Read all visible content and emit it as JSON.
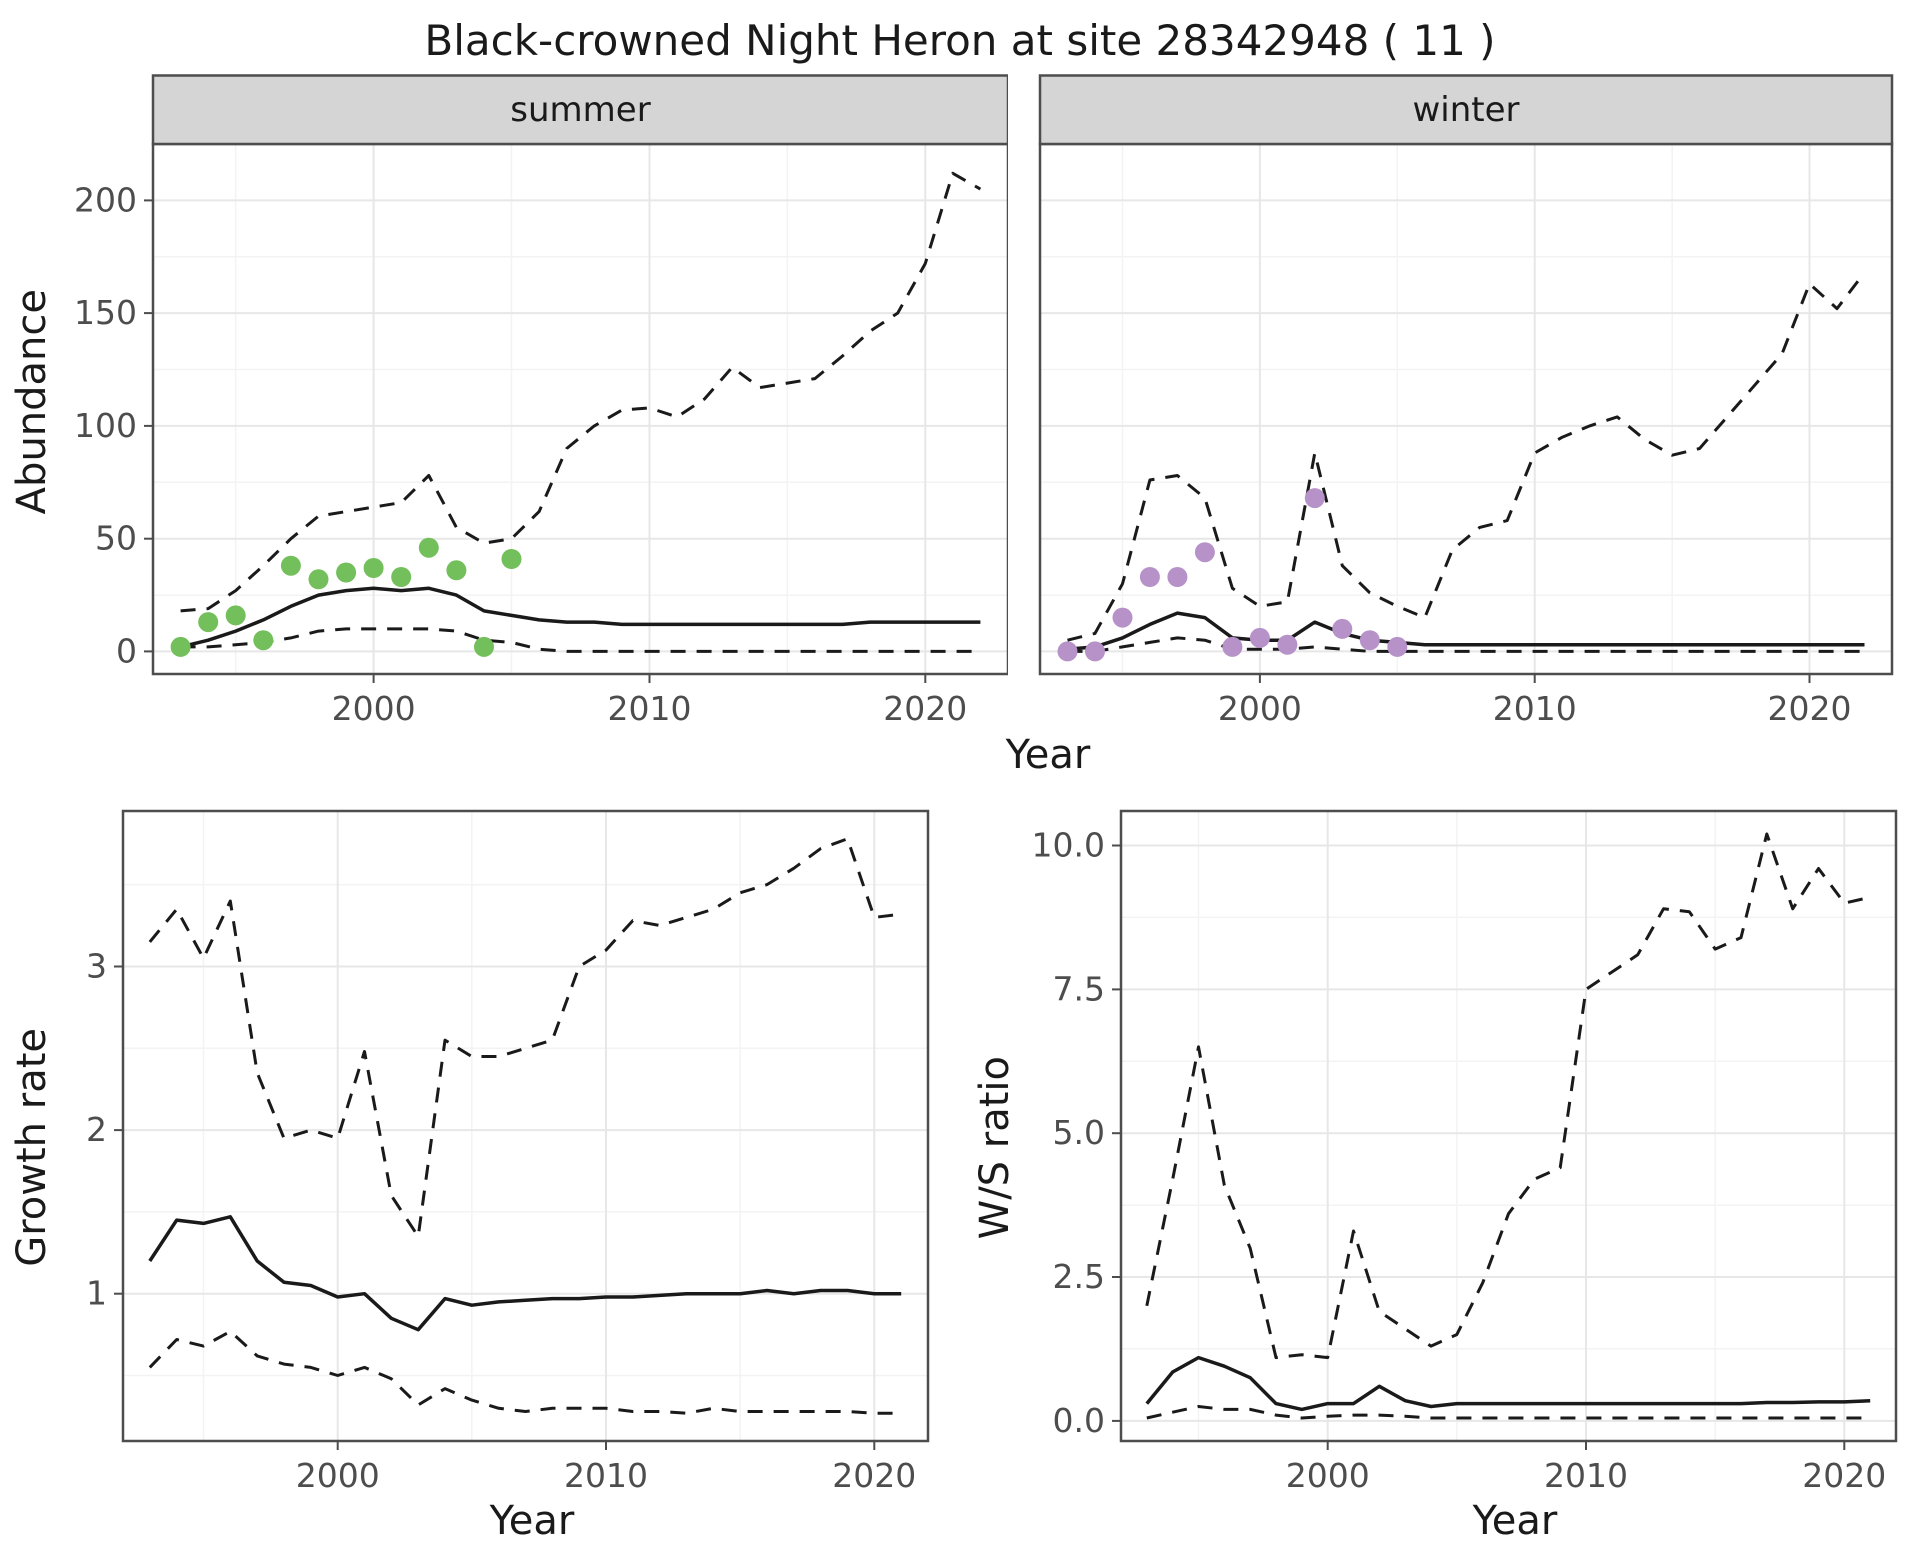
{
  "page": {
    "title": "Black-crowned Night Heron at site 28342948 ( 11 )"
  },
  "colors": {
    "line": "#1A1A1A",
    "summer_points": "#73BF5B",
    "winter_points": "#B792C8",
    "grid_major": "#E7E7E7",
    "grid_minor": "#F3F3F3",
    "panel_border": "#4D4D4D",
    "strip_bg": "#D5D5D5",
    "strip_text": "#1A1A1A",
    "tick_text": "#4D4D4D"
  },
  "chart_data": [
    {
      "id": "abundance-summer",
      "type": "line",
      "strip": "summer",
      "ylabel": "Abundance",
      "xlabel": "Year",
      "xlim": [
        1992,
        2023
      ],
      "ylim": [
        -10,
        225
      ],
      "xticks": [
        {
          "v": 2000,
          "label": "2000"
        },
        {
          "v": 2010,
          "label": "2010"
        },
        {
          "v": 2020,
          "label": "2020"
        }
      ],
      "yticks": [
        {
          "v": 0,
          "label": "0"
        },
        {
          "v": 50,
          "label": "50"
        },
        {
          "v": 100,
          "label": "100"
        },
        {
          "v": 150,
          "label": "150"
        },
        {
          "v": 200,
          "label": "200"
        }
      ],
      "x": [
        1993,
        1994,
        1995,
        1996,
        1997,
        1998,
        1999,
        2000,
        2001,
        2002,
        2003,
        2004,
        2005,
        2006,
        2007,
        2008,
        2009,
        2010,
        2011,
        2012,
        2013,
        2014,
        2015,
        2016,
        2017,
        2018,
        2019,
        2020,
        2021,
        2022
      ],
      "series": [
        {
          "name": "upper-ci",
          "style": "dashed",
          "values": [
            18,
            19,
            27,
            38,
            50,
            60,
            62,
            64,
            66,
            78,
            55,
            48,
            50,
            62,
            90,
            100,
            107,
            108,
            104,
            112,
            126,
            117,
            119,
            121,
            131,
            142,
            150,
            172,
            212,
            205
          ]
        },
        {
          "name": "median",
          "style": "solid",
          "values": [
            2,
            5,
            9,
            14,
            20,
            25,
            27,
            28,
            27,
            28,
            25,
            18,
            16,
            14,
            13,
            13,
            12,
            12,
            12,
            12,
            12,
            12,
            12,
            12,
            12,
            13,
            13,
            13,
            13,
            13
          ]
        },
        {
          "name": "lower-ci",
          "style": "dashed",
          "values": [
            2,
            2,
            3,
            4,
            6,
            9,
            10,
            10,
            10,
            10,
            9,
            5,
            4,
            1,
            0,
            0,
            0,
            0,
            0,
            0,
            0,
            0,
            0,
            0,
            0,
            0,
            0,
            0,
            0,
            0
          ]
        }
      ],
      "points": {
        "name": "observed-summer-counts",
        "color_key": "summer_points",
        "x": [
          1993,
          1994,
          1995,
          1996,
          1997,
          1998,
          1999,
          2000,
          2001,
          2002,
          2003,
          2004,
          2005
        ],
        "y": [
          2,
          13,
          16,
          5,
          38,
          32,
          35,
          37,
          33,
          46,
          36,
          2,
          41
        ]
      }
    },
    {
      "id": "abundance-winter",
      "type": "line",
      "strip": "winter",
      "xlabel": "Year",
      "xlim": [
        1992,
        2023
      ],
      "ylim": [
        -10,
        225
      ],
      "xticks": [
        {
          "v": 2000,
          "label": "2000"
        },
        {
          "v": 2010,
          "label": "2010"
        },
        {
          "v": 2020,
          "label": "2020"
        }
      ],
      "yticks": [
        {
          "v": 0,
          "label": "0"
        },
        {
          "v": 50,
          "label": "50"
        },
        {
          "v": 100,
          "label": "100"
        },
        {
          "v": 150,
          "label": "150"
        },
        {
          "v": 200,
          "label": "200"
        }
      ],
      "x": [
        1993,
        1994,
        1995,
        1996,
        1997,
        1998,
        1999,
        2000,
        2001,
        2002,
        2003,
        2004,
        2005,
        2006,
        2007,
        2008,
        2009,
        2010,
        2011,
        2012,
        2013,
        2014,
        2015,
        2016,
        2017,
        2018,
        2019,
        2020,
        2021,
        2022
      ],
      "series": [
        {
          "name": "upper-ci",
          "style": "dashed",
          "values": [
            5,
            8,
            30,
            76,
            78,
            68,
            28,
            20,
            22,
            88,
            38,
            26,
            20,
            15,
            45,
            55,
            58,
            88,
            95,
            100,
            104,
            94,
            87,
            90,
            104,
            118,
            132,
            163,
            152,
            168
          ]
        },
        {
          "name": "median",
          "style": "solid",
          "values": [
            1,
            2,
            6,
            12,
            17,
            15,
            6,
            5,
            5,
            13,
            8,
            5,
            4,
            3,
            3,
            3,
            3,
            3,
            3,
            3,
            3,
            3,
            3,
            3,
            3,
            3,
            3,
            3,
            3,
            3
          ]
        },
        {
          "name": "lower-ci",
          "style": "dashed",
          "values": [
            0,
            0,
            2,
            4,
            6,
            5,
            1,
            1,
            1,
            2,
            1,
            0,
            0,
            0,
            0,
            0,
            0,
            0,
            0,
            0,
            0,
            0,
            0,
            0,
            0,
            0,
            0,
            0,
            0,
            0
          ]
        }
      ],
      "points": {
        "name": "observed-winter-counts",
        "color_key": "winter_points",
        "x": [
          1993,
          1994,
          1995,
          1996,
          1997,
          1998,
          1999,
          2000,
          2001,
          2002,
          2003,
          2004,
          2005
        ],
        "y": [
          0,
          0,
          15,
          33,
          33,
          44,
          2,
          6,
          3,
          68,
          10,
          5,
          2
        ]
      }
    },
    {
      "id": "growth-rate",
      "type": "line",
      "ylabel": "Growth rate",
      "xlabel": "Year",
      "xlim": [
        1992,
        2022
      ],
      "ylim": [
        0.1,
        3.95
      ],
      "xticks": [
        {
          "v": 2000,
          "label": "2000"
        },
        {
          "v": 2010,
          "label": "2010"
        },
        {
          "v": 2020,
          "label": "2020"
        }
      ],
      "yticks": [
        {
          "v": 1,
          "label": "1"
        },
        {
          "v": 2,
          "label": "2"
        },
        {
          "v": 3,
          "label": "3"
        }
      ],
      "x": [
        1993,
        1994,
        1995,
        1996,
        1997,
        1998,
        1999,
        2000,
        2001,
        2002,
        2003,
        2004,
        2005,
        2006,
        2007,
        2008,
        2009,
        2010,
        2011,
        2012,
        2013,
        2014,
        2015,
        2016,
        2017,
        2018,
        2019,
        2020,
        2021
      ],
      "series": [
        {
          "name": "upper-ci",
          "style": "dashed",
          "values": [
            3.15,
            3.35,
            3.05,
            3.4,
            2.35,
            1.95,
            2.0,
            1.95,
            2.48,
            1.6,
            1.35,
            2.55,
            2.45,
            2.45,
            2.5,
            2.55,
            3.0,
            3.1,
            3.28,
            3.25,
            3.3,
            3.35,
            3.45,
            3.5,
            3.6,
            3.72,
            3.78,
            3.3,
            3.32
          ]
        },
        {
          "name": "median",
          "style": "solid",
          "values": [
            1.2,
            1.45,
            1.43,
            1.47,
            1.2,
            1.07,
            1.05,
            0.98,
            1.0,
            0.85,
            0.78,
            0.97,
            0.93,
            0.95,
            0.96,
            0.97,
            0.97,
            0.98,
            0.98,
            0.99,
            1.0,
            1.0,
            1.0,
            1.02,
            1.0,
            1.02,
            1.02,
            1.0,
            1.0
          ]
        },
        {
          "name": "lower-ci",
          "style": "dashed",
          "values": [
            0.55,
            0.72,
            0.68,
            0.77,
            0.62,
            0.57,
            0.55,
            0.5,
            0.55,
            0.48,
            0.32,
            0.42,
            0.35,
            0.3,
            0.28,
            0.3,
            0.3,
            0.3,
            0.28,
            0.28,
            0.27,
            0.3,
            0.28,
            0.28,
            0.28,
            0.28,
            0.28,
            0.27,
            0.27
          ]
        }
      ]
    },
    {
      "id": "ws-ratio",
      "type": "line",
      "ylabel": "W/S ratio",
      "xlabel": "Year",
      "xlim": [
        1992,
        2022
      ],
      "ylim": [
        -0.35,
        10.6
      ],
      "xticks": [
        {
          "v": 2000,
          "label": "2000"
        },
        {
          "v": 2010,
          "label": "2010"
        },
        {
          "v": 2020,
          "label": "2020"
        }
      ],
      "yticks": [
        {
          "v": 0,
          "label": "0.0"
        },
        {
          "v": 2.5,
          "label": "2.5"
        },
        {
          "v": 5,
          "label": "5.0"
        },
        {
          "v": 7.5,
          "label": "7.5"
        },
        {
          "v": 10,
          "label": "10.0"
        }
      ],
      "x": [
        1993,
        1994,
        1995,
        1996,
        1997,
        1998,
        1999,
        2000,
        2001,
        2002,
        2003,
        2004,
        2005,
        2006,
        2007,
        2008,
        2009,
        2010,
        2011,
        2012,
        2013,
        2014,
        2015,
        2016,
        2017,
        2018,
        2019,
        2020,
        2021
      ],
      "series": [
        {
          "name": "upper-ci",
          "style": "dashed",
          "values": [
            2.0,
            4.2,
            6.5,
            4.1,
            3.0,
            1.1,
            1.15,
            1.1,
            3.3,
            1.9,
            1.6,
            1.3,
            1.5,
            2.4,
            3.6,
            4.2,
            4.4,
            7.5,
            7.8,
            8.1,
            8.9,
            8.85,
            8.2,
            8.4,
            10.2,
            8.9,
            9.6,
            9.0,
            9.1
          ]
        },
        {
          "name": "median",
          "style": "solid",
          "values": [
            0.3,
            0.85,
            1.1,
            0.95,
            0.75,
            0.3,
            0.2,
            0.3,
            0.3,
            0.6,
            0.35,
            0.25,
            0.3,
            0.3,
            0.3,
            0.3,
            0.3,
            0.3,
            0.3,
            0.3,
            0.3,
            0.3,
            0.3,
            0.3,
            0.32,
            0.32,
            0.33,
            0.33,
            0.35
          ]
        },
        {
          "name": "lower-ci",
          "style": "dashed",
          "values": [
            0.05,
            0.15,
            0.25,
            0.2,
            0.2,
            0.1,
            0.05,
            0.08,
            0.1,
            0.1,
            0.08,
            0.05,
            0.05,
            0.05,
            0.05,
            0.05,
            0.05,
            0.05,
            0.05,
            0.05,
            0.05,
            0.05,
            0.05,
            0.05,
            0.05,
            0.05,
            0.05,
            0.05,
            0.05
          ]
        }
      ]
    }
  ]
}
